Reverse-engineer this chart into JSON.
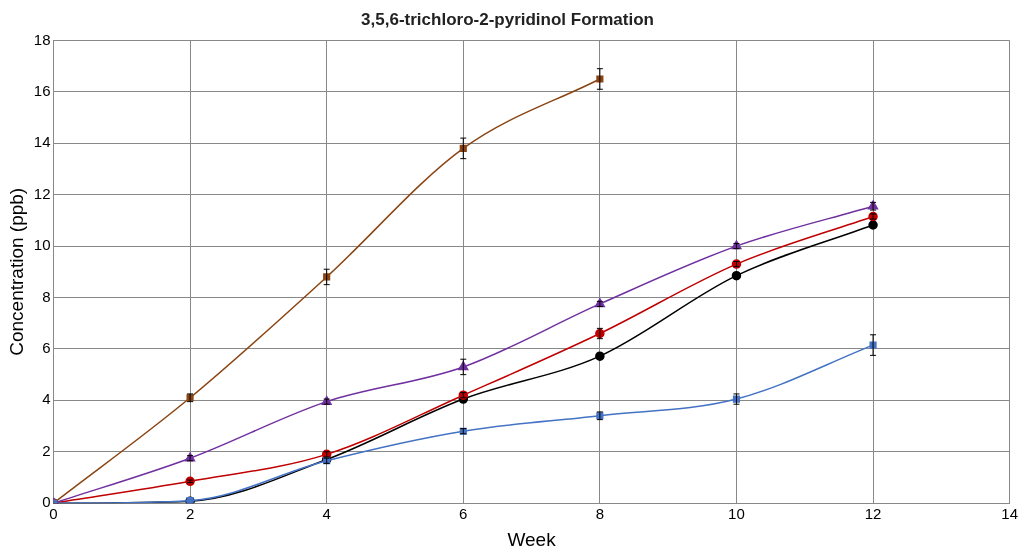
{
  "chart_data": {
    "type": "line",
    "title": "3,5,6-trichloro-2-pyridinol Formation",
    "xlabel": "Week",
    "ylabel": "Concentration (ppb)",
    "xlim": [
      0,
      14
    ],
    "xticks": [
      0,
      2,
      4,
      6,
      8,
      10,
      12,
      14
    ],
    "ylim": [
      0,
      18
    ],
    "yticks": [
      0,
      2,
      4,
      6,
      8,
      10,
      12,
      14,
      16,
      18
    ],
    "grid": true,
    "legend": false,
    "series": [
      {
        "color": "#4472c4",
        "marker": "square",
        "x": [
          0,
          2,
          4,
          6,
          8,
          10,
          12
        ],
        "values": [
          0,
          0.1,
          1.65,
          2.8,
          3.4,
          4.05,
          6.15
        ],
        "errors": [
          null,
          null,
          0.1,
          0.1,
          0.15,
          0.2,
          0.4
        ]
      },
      {
        "color": "#8b4513",
        "marker": "square",
        "x": [
          0,
          2,
          4,
          6,
          8
        ],
        "values": [
          0,
          4.1,
          8.8,
          13.8,
          16.5
        ],
        "errors": [
          null,
          0.15,
          0.3,
          0.4,
          0.4
        ]
      },
      {
        "color": "#7030a0",
        "marker": "triangle",
        "x": [
          0,
          2,
          4,
          6,
          8,
          10,
          12
        ],
        "values": [
          0,
          1.75,
          3.95,
          5.3,
          7.75,
          10,
          11.55
        ],
        "errors": [
          null,
          0.1,
          0.1,
          0.3,
          0.1,
          0.1,
          0.15
        ]
      },
      {
        "color": "#c00000",
        "marker": "circle",
        "x": [
          0,
          2,
          4,
          6,
          8,
          10,
          12
        ],
        "values": [
          0,
          0.85,
          1.9,
          4.2,
          6.6,
          9.3,
          11.15
        ],
        "errors": [
          null,
          0.05,
          0.1,
          0.1,
          0.2,
          0.1,
          0.1
        ]
      },
      {
        "color": "#000000",
        "marker": "circle",
        "x": [
          0,
          2,
          4,
          6,
          8,
          10,
          12
        ],
        "values": [
          0,
          0.08,
          1.7,
          4.05,
          5.72,
          8.85,
          10.82
        ]
      }
    ]
  }
}
